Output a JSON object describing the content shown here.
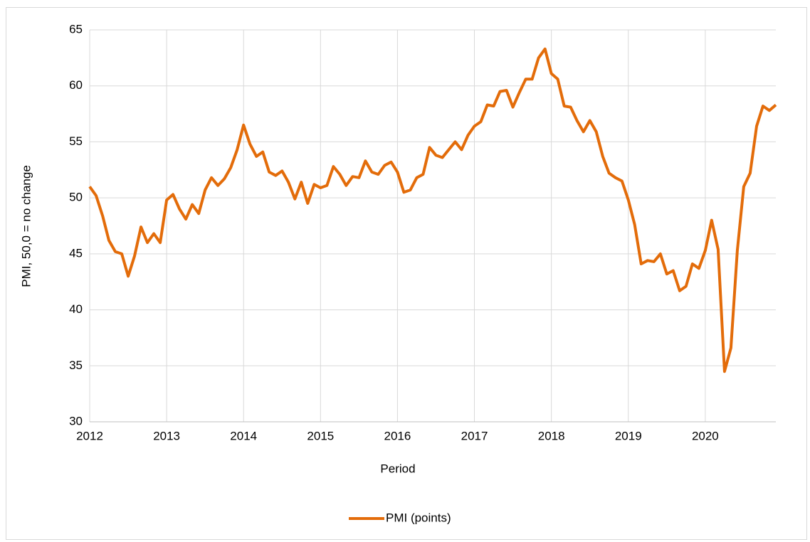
{
  "chart_data": {
    "type": "line",
    "x_label": "Period",
    "y_label": "PMI, 50,0 = no change",
    "x": [
      2012,
      2012.083,
      2012.167,
      2012.25,
      2012.333,
      2012.417,
      2012.5,
      2012.583,
      2012.667,
      2012.75,
      2012.833,
      2012.917,
      2013,
      2013.083,
      2013.167,
      2013.25,
      2013.333,
      2013.417,
      2013.5,
      2013.583,
      2013.667,
      2013.75,
      2013.833,
      2013.917,
      2014,
      2014.083,
      2014.167,
      2014.25,
      2014.333,
      2014.417,
      2014.5,
      2014.583,
      2014.667,
      2014.75,
      2014.833,
      2014.917,
      2015,
      2015.083,
      2015.167,
      2015.25,
      2015.333,
      2015.417,
      2015.5,
      2015.583,
      2015.667,
      2015.75,
      2015.833,
      2015.917,
      2016,
      2016.083,
      2016.167,
      2016.25,
      2016.333,
      2016.417,
      2016.5,
      2016.583,
      2016.667,
      2016.75,
      2016.833,
      2016.917,
      2017,
      2017.083,
      2017.167,
      2017.25,
      2017.333,
      2017.417,
      2017.5,
      2017.583,
      2017.667,
      2017.75,
      2017.833,
      2017.917,
      2018,
      2018.083,
      2018.167,
      2018.25,
      2018.333,
      2018.417,
      2018.5,
      2018.583,
      2018.667,
      2018.75,
      2018.833,
      2018.917,
      2019,
      2019.083,
      2019.167,
      2019.25,
      2019.333,
      2019.417,
      2019.5,
      2019.583,
      2019.667,
      2019.75,
      2019.833,
      2019.917,
      2020,
      2020.083,
      2020.167,
      2020.25,
      2020.333,
      2020.417,
      2020.5,
      2020.583,
      2020.667,
      2020.75,
      2020.833,
      2020.917
    ],
    "series": [
      {
        "name": "PMI (points)",
        "color": "#e36c0a",
        "values": [
          51.0,
          50.2,
          48.4,
          46.2,
          45.2,
          45.0,
          43.0,
          44.8,
          47.4,
          46.0,
          46.8,
          46.0,
          49.8,
          50.3,
          49.0,
          48.1,
          49.4,
          48.6,
          50.7,
          51.8,
          51.1,
          51.7,
          52.7,
          54.3,
          56.5,
          54.8,
          53.7,
          54.1,
          52.3,
          52.0,
          52.4,
          51.4,
          49.9,
          51.4,
          49.5,
          51.2,
          50.9,
          51.1,
          52.8,
          52.1,
          51.1,
          51.9,
          51.8,
          53.3,
          52.3,
          52.1,
          52.9,
          53.2,
          52.3,
          50.5,
          50.7,
          51.8,
          52.1,
          54.5,
          53.8,
          53.6,
          54.3,
          55.0,
          54.3,
          55.6,
          56.4,
          56.8,
          58.3,
          58.2,
          59.5,
          59.6,
          58.1,
          59.4,
          60.6,
          60.6,
          62.5,
          63.3,
          61.1,
          60.6,
          58.2,
          58.1,
          56.9,
          55.9,
          56.9,
          55.9,
          53.7,
          52.2,
          51.8,
          51.5,
          49.8,
          47.6,
          44.1,
          44.4,
          44.3,
          45.0,
          43.2,
          43.5,
          41.7,
          42.1,
          44.1,
          43.7,
          45.3,
          48.0,
          45.4,
          34.5,
          36.6,
          45.3,
          51.0,
          52.2,
          56.4,
          58.2,
          57.8,
          58.3
        ]
      }
    ],
    "xlim": [
      2012,
      2020.917
    ],
    "xticks": [
      2012,
      2013,
      2014,
      2015,
      2016,
      2017,
      2018,
      2019,
      2020
    ],
    "ylim": [
      30,
      65
    ],
    "yticks": [
      30,
      35,
      40,
      45,
      50,
      55,
      60,
      65
    ],
    "grid": true,
    "legend": "bottom"
  }
}
